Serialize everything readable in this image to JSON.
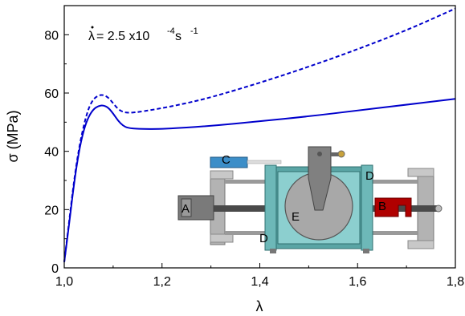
{
  "chart_data": {
    "type": "line",
    "xlabel": "λ",
    "ylabel": "σ (MPa)",
    "xlim": [
      1.0,
      1.8
    ],
    "ylim": [
      0,
      90
    ],
    "x_ticks": [
      "1,0",
      "1,2",
      "1,4",
      "1,6",
      "1,8"
    ],
    "y_ticks": [
      "0",
      "20",
      "40",
      "60",
      "80"
    ],
    "grid": false,
    "annotation": {
      "lambda_dot": "λ",
      "equals": " = 2.5 x10",
      "exponent": "-4",
      "unit": " s",
      "unit_exp": "-1"
    },
    "series": [
      {
        "style": "dashed",
        "color": "#0000cc",
        "x": [
          1.0,
          1.01,
          1.02,
          1.03,
          1.04,
          1.05,
          1.06,
          1.07,
          1.08,
          1.09,
          1.1,
          1.11,
          1.12,
          1.13,
          1.15,
          1.2,
          1.25,
          1.3,
          1.4,
          1.5,
          1.6,
          1.7,
          1.8
        ],
        "y": [
          2,
          16,
          30,
          41,
          49,
          55,
          58,
          59.2,
          59.4,
          58.5,
          56.5,
          54.5,
          53.5,
          53.2,
          53.4,
          54.8,
          56.5,
          58.5,
          63.5,
          69,
          75,
          81.5,
          89
        ]
      },
      {
        "style": "solid",
        "color": "#0000cc",
        "x": [
          1.0,
          1.01,
          1.02,
          1.03,
          1.04,
          1.05,
          1.06,
          1.07,
          1.08,
          1.09,
          1.1,
          1.11,
          1.12,
          1.13,
          1.15,
          1.2,
          1.3,
          1.4,
          1.5,
          1.6,
          1.7,
          1.8
        ],
        "y": [
          2,
          15,
          29,
          40,
          47.5,
          52,
          54.5,
          55.6,
          55.8,
          55,
          53,
          50.5,
          48.8,
          48,
          47.7,
          47.6,
          48.7,
          50.3,
          52,
          54,
          56,
          58
        ]
      }
    ]
  },
  "inset": {
    "labels": [
      "A",
      "B",
      "C",
      "D",
      "D",
      "E"
    ],
    "colors": {
      "frame": "#b3b3b3",
      "chamber": "#8ccfcf",
      "chamber_dark": "#5aa5a5",
      "disc": "#a8a8a8",
      "arm": "#808080",
      "grip_b": "#b00000",
      "part_c": "#3c8ec8",
      "motor_a": "#7a7a7a",
      "rod": "#4a4a4a"
    }
  }
}
